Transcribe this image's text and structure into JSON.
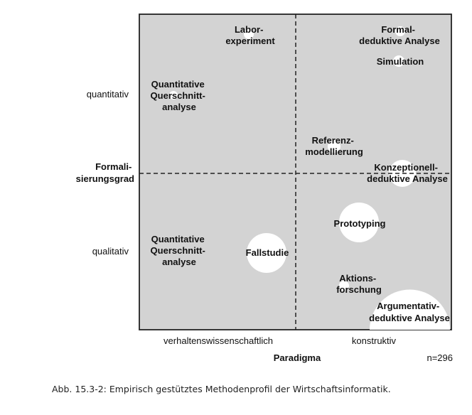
{
  "diagram": {
    "y_axis": {
      "title_lines": [
        "Formali-",
        "sierungsgrad"
      ],
      "upper": "quantitativ",
      "lower": "qualitativ"
    },
    "x_axis": {
      "title": "Paradigma",
      "left": "verhaltenswissenschaftlich",
      "right": "konstruktiv"
    },
    "sample": "n=296",
    "methods": [
      {
        "lines": [
          "Labor-",
          "experiment"
        ]
      },
      {
        "lines": [
          "Formal-",
          "deduktive Analyse"
        ]
      },
      {
        "lines": [
          "Simulation"
        ]
      },
      {
        "lines": [
          "Quantitative",
          "Querschnitt-",
          "analyse"
        ]
      },
      {
        "lines": [
          "Referenz-",
          "modellierung"
        ]
      },
      {
        "lines": [
          "Konzeptionell-",
          "deduktive Analyse"
        ]
      },
      {
        "lines": [
          "Prototyping"
        ]
      },
      {
        "lines": [
          "Quantitative",
          "Querschnitt-",
          "analyse"
        ]
      },
      {
        "lines": [
          "Fallstudie"
        ]
      },
      {
        "lines": [
          "Aktions-",
          "forschung"
        ]
      },
      {
        "lines": [
          "Argumentativ-",
          "deduktive Analyse"
        ]
      }
    ]
  },
  "caption": "Abb. 15.3-2: Empirisch gestütztes Methodenprofil der Wirtschaftsinformatik."
}
